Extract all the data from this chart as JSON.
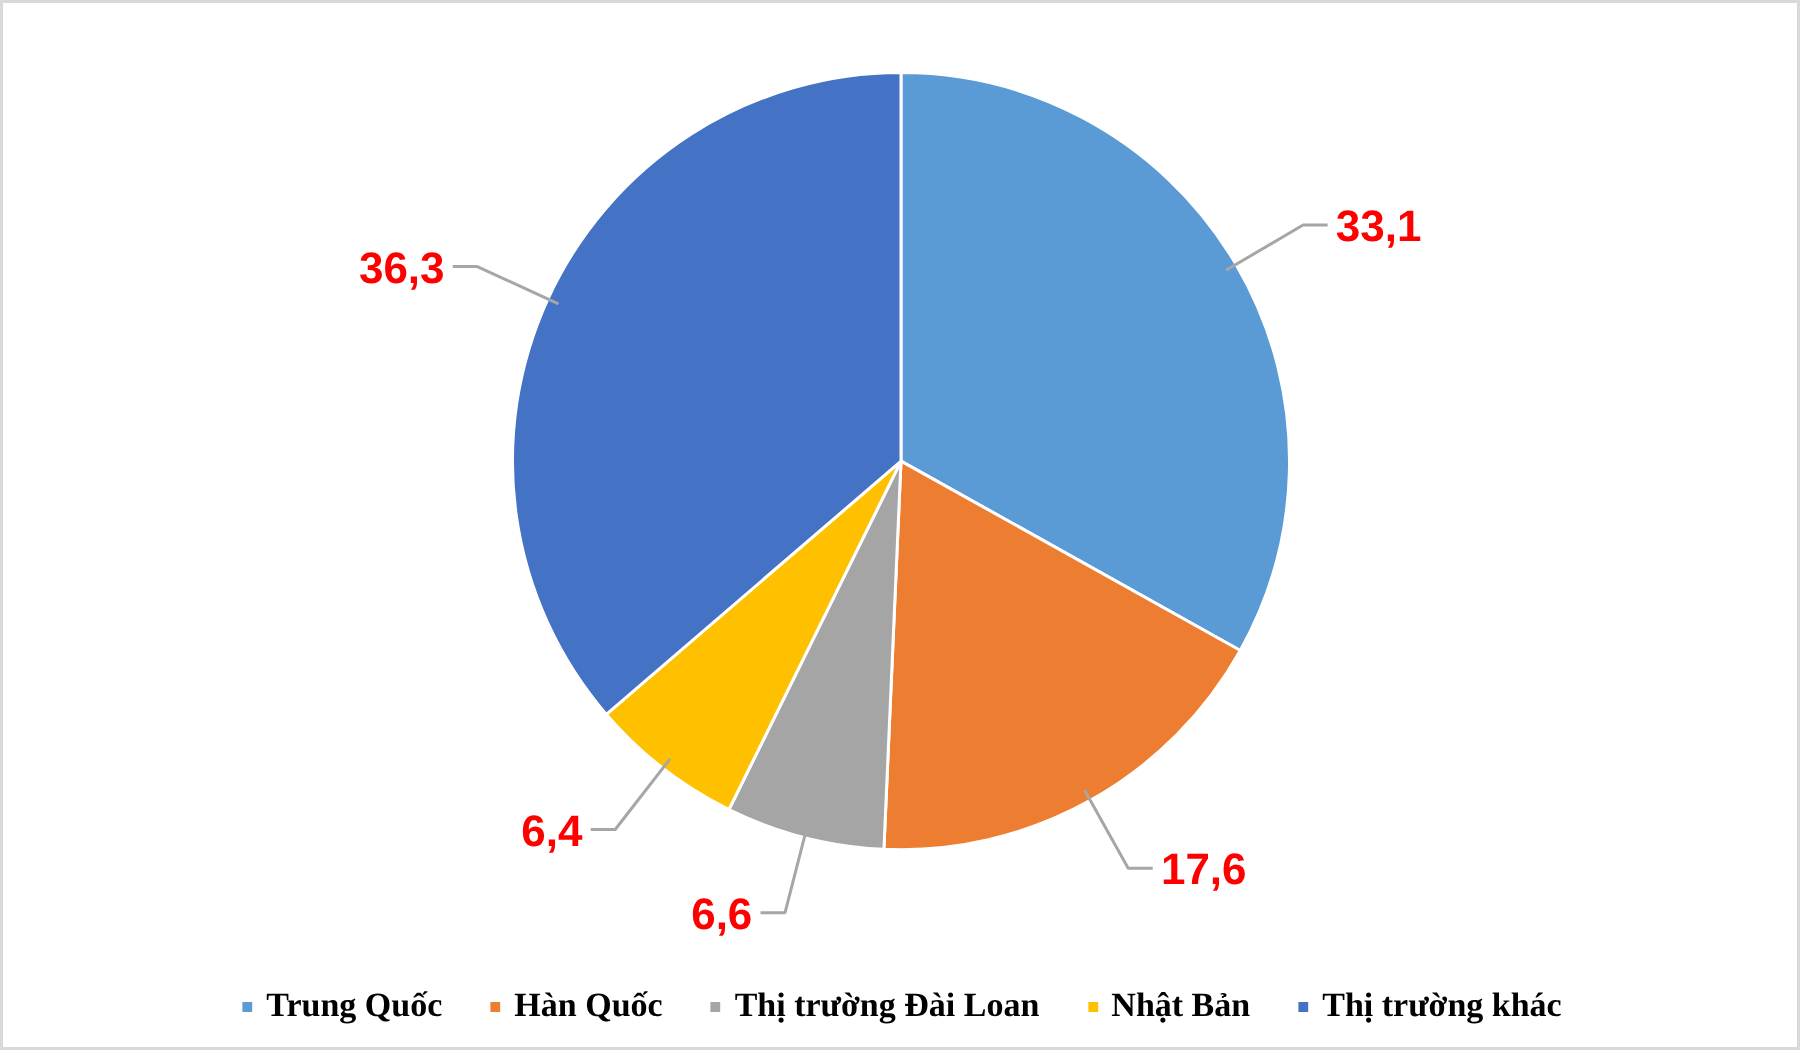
{
  "chart_data": {
    "type": "pie",
    "categories": [
      "Trung Quốc",
      "Hàn Quốc",
      "Thị trường Đài Loan",
      "Nhật Bản",
      "Thị trường khác"
    ],
    "values": [
      33.1,
      17.6,
      6.6,
      6.4,
      36.3
    ],
    "colors": [
      "#5b9bd5",
      "#ed7d31",
      "#a5a5a5",
      "#ffc000",
      "#4472c4"
    ],
    "value_labels": [
      "33,1",
      "17,6",
      "6,6",
      "6,4",
      "36,3"
    ],
    "legend": "bottom"
  }
}
